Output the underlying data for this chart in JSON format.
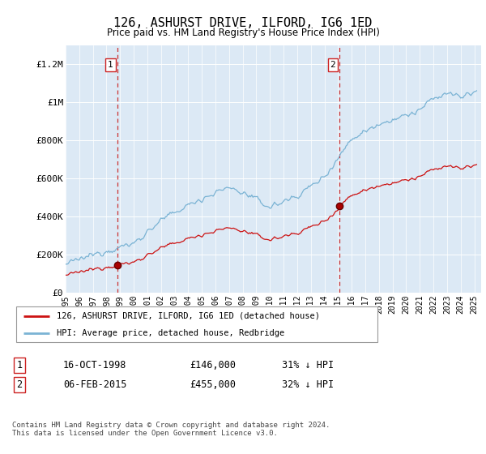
{
  "title": "126, ASHURST DRIVE, ILFORD, IG6 1ED",
  "subtitle": "Price paid vs. HM Land Registry's House Price Index (HPI)",
  "bg_color": "#dce9f5",
  "red_line_label": "126, ASHURST DRIVE, ILFORD, IG6 1ED (detached house)",
  "blue_line_label": "HPI: Average price, detached house, Redbridge",
  "sale1_date": "16-OCT-1998",
  "sale1_price": "£146,000",
  "sale1_hpi": "31% ↓ HPI",
  "sale1_year": 1998.8,
  "sale1_value": 146000,
  "sale2_date": "06-FEB-2015",
  "sale2_price": "£455,000",
  "sale2_hpi": "32% ↓ HPI",
  "sale2_year": 2015.1,
  "sale2_value": 455000,
  "footer": "Contains HM Land Registry data © Crown copyright and database right 2024.\nThis data is licensed under the Open Government Licence v3.0.",
  "ylim": [
    0,
    1300000
  ],
  "xlim_start": 1995.0,
  "xlim_end": 2025.5,
  "yticks": [
    0,
    200000,
    400000,
    600000,
    800000,
    1000000,
    1200000
  ],
  "ytick_labels": [
    "£0",
    "£200K",
    "£400K",
    "£600K",
    "£800K",
    "£1M",
    "£1.2M"
  ]
}
